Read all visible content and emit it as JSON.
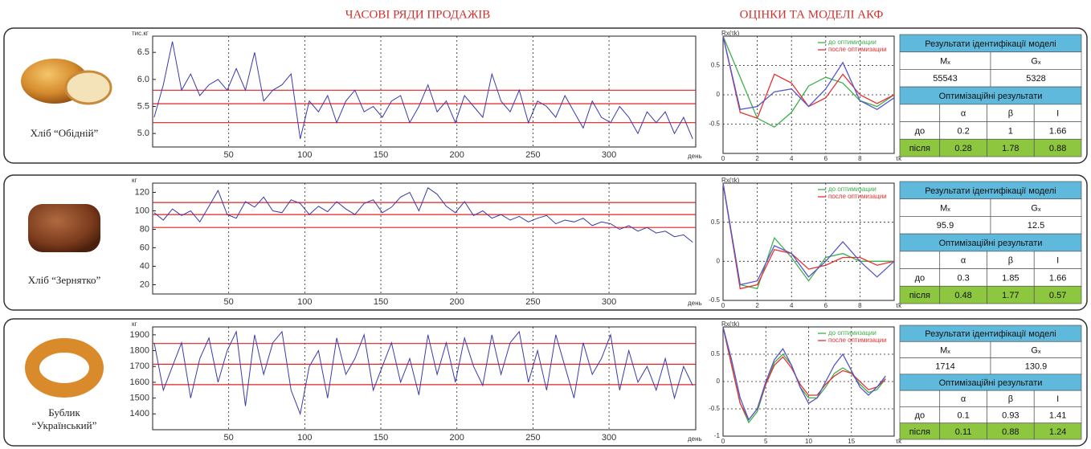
{
  "headers": [
    "ЧАСОВІ РЯДИ ПРОДАЖІВ",
    "ОЦІНКИ ТА МОДЕЛІ АКФ"
  ],
  "products": [
    {
      "name": [
        "Хліб “Обідній”"
      ]
    },
    {
      "name": [
        "Хліб “Зернятко”"
      ]
    },
    {
      "name": [
        "Бублик",
        "“Український”"
      ]
    }
  ],
  "chart_data": [
    {
      "type": "line",
      "y_label": "тис.кг",
      "x_label": "день",
      "grid": "x",
      "xlim": [
        0,
        357
      ],
      "ylim": [
        4.75,
        6.8
      ],
      "xticks": [
        50,
        100,
        150,
        200,
        250,
        300
      ],
      "yticks": [
        {
          "value": 5,
          "label": "5.0"
        },
        5.5,
        {
          "value": 6,
          "label": "6.0"
        },
        6.5
      ],
      "hlines": [
        5.2,
        5.55,
        5.8
      ],
      "hline_color": "#e02020",
      "x": [
        1,
        7,
        13,
        19,
        25,
        31,
        37,
        43,
        49,
        55,
        61,
        67,
        73,
        79,
        85,
        91,
        97,
        103,
        109,
        115,
        121,
        127,
        133,
        139,
        145,
        151,
        157,
        163,
        169,
        175,
        181,
        187,
        193,
        199,
        205,
        211,
        217,
        223,
        229,
        235,
        241,
        247,
        253,
        259,
        265,
        271,
        277,
        283,
        289,
        295,
        301,
        307,
        313,
        319,
        325,
        331,
        337,
        343,
        349,
        355
      ],
      "series": [
        {
          "color": "#3a3aa8",
          "values": [
            5.3,
            5.9,
            6.7,
            5.8,
            6.1,
            5.7,
            5.9,
            6.0,
            5.8,
            6.2,
            5.8,
            6.5,
            5.6,
            5.8,
            5.9,
            6.1,
            4.9,
            5.6,
            5.4,
            5.7,
            5.2,
            5.6,
            5.8,
            5.4,
            5.5,
            5.3,
            5.6,
            5.7,
            5.2,
            5.5,
            5.9,
            5.4,
            5.6,
            5.2,
            5.7,
            5.5,
            5.3,
            6.1,
            5.6,
            5.4,
            5.8,
            5.2,
            5.6,
            5.5,
            5.3,
            5.7,
            5.4,
            5.1,
            5.6,
            5.3,
            5.2,
            5.5,
            5.3,
            5.0,
            5.4,
            5.2,
            5.4,
            5.0,
            5.3,
            4.9
          ]
        }
      ]
    },
    {
      "type": "line",
      "y_label": "Rx(τk)",
      "x_label": "τk",
      "grid": "both",
      "xlim": [
        0,
        10
      ],
      "ylim": [
        -1,
        1
      ],
      "xticks": [
        0,
        2,
        4,
        6,
        8
      ],
      "yticks": [
        -0.5,
        0,
        0.5
      ],
      "x": [
        0,
        1,
        2,
        3,
        4,
        5,
        6,
        7,
        8,
        9,
        10
      ],
      "series": [
        {
          "name": "до оптимизации",
          "color": "#3cb04a",
          "values": [
            1,
            0.3,
            -0.4,
            -0.55,
            -0.3,
            0.15,
            0.3,
            0.2,
            -0.1,
            -0.2,
            0
          ]
        },
        {
          "name": "после оптимизации",
          "color": "#e83030",
          "values": [
            1,
            -0.3,
            -0.4,
            0.35,
            0.2,
            -0.2,
            -0.05,
            0.35,
            0,
            -0.15,
            0
          ]
        },
        {
          "color": "#5555cc",
          "values": [
            1,
            -0.25,
            -0.2,
            0.05,
            0.1,
            -0.2,
            0.1,
            0.55,
            -0.1,
            -0.25,
            -0.05
          ]
        }
      ]
    },
    {
      "type": "line",
      "y_label": "кг",
      "x_label": "день",
      "grid": "x",
      "xlim": [
        0,
        357
      ],
      "ylim": [
        10,
        130
      ],
      "xticks": [
        50,
        100,
        150,
        200,
        250,
        300
      ],
      "yticks": [
        20,
        40,
        60,
        80,
        100,
        120
      ],
      "hlines": [
        82,
        96,
        109
      ],
      "hline_color": "#e02020",
      "x": [
        1,
        7,
        13,
        19,
        25,
        31,
        37,
        43,
        49,
        55,
        61,
        67,
        73,
        79,
        85,
        91,
        97,
        103,
        109,
        115,
        121,
        127,
        133,
        139,
        145,
        151,
        157,
        163,
        169,
        175,
        181,
        187,
        193,
        199,
        205,
        211,
        217,
        223,
        229,
        235,
        241,
        247,
        253,
        259,
        265,
        271,
        277,
        283,
        289,
        295,
        301,
        307,
        313,
        319,
        325,
        331,
        337,
        343,
        349,
        355
      ],
      "series": [
        {
          "color": "#3a3aa8",
          "values": [
            98,
            90,
            102,
            95,
            100,
            88,
            105,
            122,
            96,
            92,
            110,
            104,
            115,
            100,
            98,
            112,
            108,
            96,
            105,
            99,
            110,
            102,
            96,
            108,
            112,
            98,
            104,
            115,
            120,
            100,
            125,
            118,
            105,
            98,
            110,
            95,
            100,
            92,
            96,
            90,
            94,
            88,
            92,
            95,
            86,
            90,
            88,
            92,
            84,
            88,
            86,
            80,
            84,
            78,
            82,
            76,
            78,
            72,
            74,
            66
          ]
        }
      ]
    },
    {
      "type": "line",
      "y_label": "Rx(τk)",
      "x_label": "τk",
      "grid": "both",
      "xlim": [
        0,
        10
      ],
      "ylim": [
        -0.5,
        1
      ],
      "xticks": [
        0,
        2,
        4,
        6,
        8
      ],
      "yticks": [
        -0.5,
        0,
        0.5
      ],
      "x": [
        0,
        1,
        2,
        3,
        4,
        5,
        6,
        7,
        8,
        9,
        10
      ],
      "series": [
        {
          "name": "до оптимизации",
          "color": "#3cb04a",
          "values": [
            1,
            -0.3,
            -0.35,
            0.3,
            0.05,
            -0.25,
            0.05,
            0.1,
            0,
            0,
            0
          ]
        },
        {
          "name": "после оптимизации",
          "color": "#e83030",
          "values": [
            1,
            -0.35,
            -0.3,
            0.15,
            0.1,
            -0.1,
            -0.05,
            0.05,
            0.05,
            -0.05,
            0
          ]
        },
        {
          "color": "#5555cc",
          "values": [
            1,
            -0.3,
            -0.25,
            0.2,
            0.1,
            -0.2,
            0,
            0.25,
            0,
            -0.2,
            0
          ]
        }
      ]
    },
    {
      "type": "line",
      "y_label": "кг",
      "x_label": "день",
      "grid": "x",
      "xlim": [
        0,
        357
      ],
      "ylim": [
        1300,
        1950
      ],
      "xticks": [
        50,
        100,
        150,
        200,
        250,
        300
      ],
      "yticks": [
        1400,
        1500,
        1600,
        1700,
        1800,
        1900
      ],
      "hlines": [
        1585,
        1714,
        1845
      ],
      "hline_color": "#e02020",
      "x": [
        1,
        7,
        13,
        19,
        25,
        31,
        37,
        43,
        49,
        55,
        61,
        67,
        73,
        79,
        85,
        91,
        97,
        103,
        109,
        115,
        121,
        127,
        133,
        139,
        145,
        151,
        157,
        163,
        169,
        175,
        181,
        187,
        193,
        199,
        205,
        211,
        217,
        223,
        229,
        235,
        241,
        247,
        253,
        259,
        265,
        271,
        277,
        283,
        289,
        295,
        301,
        307,
        313,
        319,
        325,
        331,
        337,
        343,
        349,
        355
      ],
      "series": [
        {
          "color": "#3a3aa8",
          "values": [
            1850,
            1550,
            1700,
            1850,
            1500,
            1750,
            1880,
            1600,
            1800,
            1920,
            1450,
            1900,
            1650,
            1850,
            1920,
            1550,
            1400,
            1700,
            1800,
            1500,
            1880,
            1650,
            1750,
            1900,
            1550,
            1700,
            1850,
            1600,
            1750,
            1520,
            1900,
            1650,
            1850,
            1600,
            1880,
            1700,
            1580,
            1900,
            1650,
            1850,
            1920,
            1600,
            1800,
            1550,
            1900,
            1700,
            1500,
            1850,
            1650,
            1750,
            1900,
            1550,
            1800,
            1600,
            1700,
            1550,
            1750,
            1500,
            1700,
            1580
          ]
        }
      ]
    },
    {
      "type": "line",
      "y_label": "Rx(τk)",
      "x_label": "τk",
      "grid": "both",
      "xlim": [
        0,
        20
      ],
      "ylim": [
        -1,
        1
      ],
      "xticks": [
        0,
        5,
        10,
        15
      ],
      "yticks": [
        -1,
        -0.5,
        0,
        0.5
      ],
      "x": [
        0,
        1,
        2,
        3,
        4,
        5,
        6,
        7,
        8,
        9,
        10,
        11,
        12,
        13,
        14,
        15,
        16,
        17,
        18,
        19
      ],
      "series": [
        {
          "name": "до оптимизации",
          "color": "#3cb04a",
          "values": [
            1,
            0.3,
            -0.4,
            -0.75,
            -0.55,
            -0.05,
            0.35,
            0.5,
            0.3,
            -0.1,
            -0.3,
            -0.3,
            -0.1,
            0.15,
            0.25,
            0.15,
            -0.05,
            -0.2,
            -0.15,
            0.05
          ]
        },
        {
          "name": "после оптимизации",
          "color": "#e83030",
          "values": [
            1,
            0.3,
            -0.4,
            -0.7,
            -0.5,
            -0.05,
            0.3,
            0.45,
            0.25,
            -0.05,
            -0.25,
            -0.25,
            -0.05,
            0.1,
            0.2,
            0.15,
            0,
            -0.15,
            -0.1,
            0.05
          ]
        },
        {
          "color": "#5555cc",
          "values": [
            1,
            0.4,
            -0.3,
            -0.7,
            -0.5,
            0,
            0.4,
            0.6,
            0.3,
            -0.1,
            -0.4,
            -0.3,
            0,
            0.3,
            0.5,
            0.2,
            -0.1,
            -0.25,
            -0.1,
            0.1
          ]
        }
      ]
    }
  ],
  "tables": [
    {
      "title": "Результати ідентифікації моделі",
      "stat_headers": [
        "Mₓ",
        "Gₓ"
      ],
      "stats": [
        55543,
        5328
      ],
      "opt_title": "Оптимізаційні результати",
      "param_headers": [
        "α",
        "β",
        "I"
      ],
      "rows": [
        {
          "label": "до",
          "values": [
            0.2,
            1,
            1.66
          ]
        },
        {
          "label": "після",
          "values": [
            0.28,
            1.78,
            0.88
          ]
        }
      ]
    },
    {
      "title": "Результати ідентифікації моделі",
      "stat_headers": [
        "Mₓ",
        "Gₓ"
      ],
      "stats": [
        95.9,
        12.5
      ],
      "opt_title": "Оптимізаційні результати",
      "param_headers": [
        "α",
        "β",
        "I"
      ],
      "rows": [
        {
          "label": "до",
          "values": [
            0.3,
            1.85,
            1.66
          ]
        },
        {
          "label": "після",
          "values": [
            0.48,
            1.77,
            0.57
          ]
        }
      ]
    },
    {
      "title": "Результати ідентифікації моделі",
      "stat_headers": [
        "Mₓ",
        "Gₓ"
      ],
      "stats": [
        1714,
        130.9
      ],
      "opt_title": "Оптимізаційні результати",
      "param_headers": [
        "α",
        "β",
        "I"
      ],
      "rows": [
        {
          "label": "до",
          "values": [
            0.1,
            0.93,
            1.41
          ]
        },
        {
          "label": "після",
          "values": [
            0.11,
            0.88,
            1.24
          ]
        }
      ]
    }
  ]
}
